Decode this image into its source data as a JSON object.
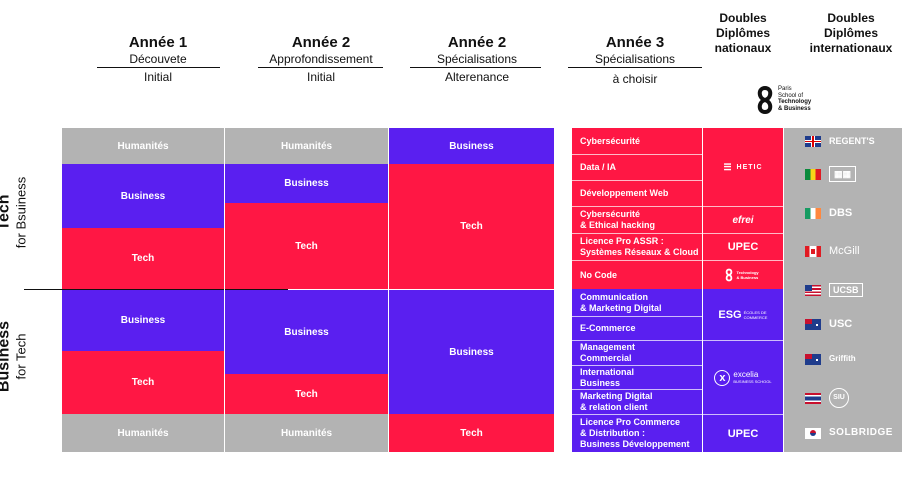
{
  "headers": {
    "y1": {
      "title": "Année 1",
      "sub1": "Découvete",
      "sub2": "Initial"
    },
    "y2": {
      "title": "Année 2",
      "sub1": "Approfondissement",
      "sub2": "Initial"
    },
    "y2s": {
      "title": "Année 2",
      "sub1": "Spécialisations",
      "sub2": "Alterenance"
    },
    "y3": {
      "title": "Année 3",
      "sub1": "Spécialisations",
      "sub2": "à choisir"
    },
    "dn": {
      "l1": "Doubles",
      "l2": "Diplômes",
      "l3": "nationaux"
    },
    "di": {
      "l1": "Doubles",
      "l2": "Diplômes",
      "l3": "internationaux"
    }
  },
  "sides": {
    "tech": {
      "big": "Tech",
      "small": "for Bsuiness"
    },
    "business": {
      "big": "Business",
      "small": "for Tech"
    }
  },
  "ptsb": {
    "l1": "Paris",
    "l2": "School of",
    "l3": "Technology",
    "l4": "& Business"
  },
  "col1": {
    "humanites_top": "Humanités",
    "business_1": "Business",
    "tech_1": "Tech",
    "business_2": "Business",
    "tech_2": "Tech",
    "humanites_bottom": "Humanités"
  },
  "col2": {
    "humanites_top": "Humanités",
    "business_1": "Business",
    "tech_1": "Tech",
    "business_2": "Business",
    "tech_2": "Tech",
    "humanites_bottom": "Humanités"
  },
  "col3": {
    "business_top": "Business",
    "tech_1": "Tech",
    "business_2": "Business",
    "tech_bottom": "Tech"
  },
  "specs": [
    {
      "l1": "Cybersécurité",
      "l2": ""
    },
    {
      "l1": "Data / IA",
      "l2": ""
    },
    {
      "l1": "Développement Web",
      "l2": ""
    },
    {
      "l1": "Cybersécurité",
      "l2": "& Ethical hacking"
    },
    {
      "l1": "Licence Pro ASSR :",
      "l2": "Systèmes Réseaux & Cloud"
    },
    {
      "l1": "No Code",
      "l2": ""
    },
    {
      "l1": "Communication",
      "l2": "& Marketing Digital"
    },
    {
      "l1": "E-Commerce",
      "l2": ""
    },
    {
      "l1": "Management",
      "l2": "Commercial"
    },
    {
      "l1": "International",
      "l2": "Business"
    },
    {
      "l1": "Marketing Digital",
      "l2": "& relation client"
    },
    {
      "l1": "Licence Pro Commerce",
      "l2": "& Distribution :",
      "l3": "Business Développement"
    }
  ],
  "national_logos": {
    "hetic": "HETIC",
    "efrei": "efrei",
    "upec": "UPEC",
    "ptsb_small": "Technology & Business",
    "esg": "ESG",
    "esg_sub": "ÉCOLES DE COMMERCE",
    "excelia": "excelia",
    "excelia_sub": "BUSINESS SCHOOL",
    "upec2": "UPEC"
  },
  "international": [
    {
      "country": "uk",
      "name": "REGENT'S"
    },
    {
      "country": "senegal",
      "name": "▦▦"
    },
    {
      "country": "ireland",
      "name": "DBS"
    },
    {
      "country": "canada",
      "name": "McGill"
    },
    {
      "country": "usa",
      "name": "UCSB"
    },
    {
      "country": "australia",
      "name": "USC"
    },
    {
      "country": "australia2",
      "name": "Griffith"
    },
    {
      "country": "thailand",
      "name": "SIU"
    },
    {
      "country": "korea",
      "name": "SOLBRIDGE"
    }
  ],
  "colors": {
    "gray": "#b3b3b3",
    "blue": "#5a1ff0",
    "red": "#ff1744"
  }
}
